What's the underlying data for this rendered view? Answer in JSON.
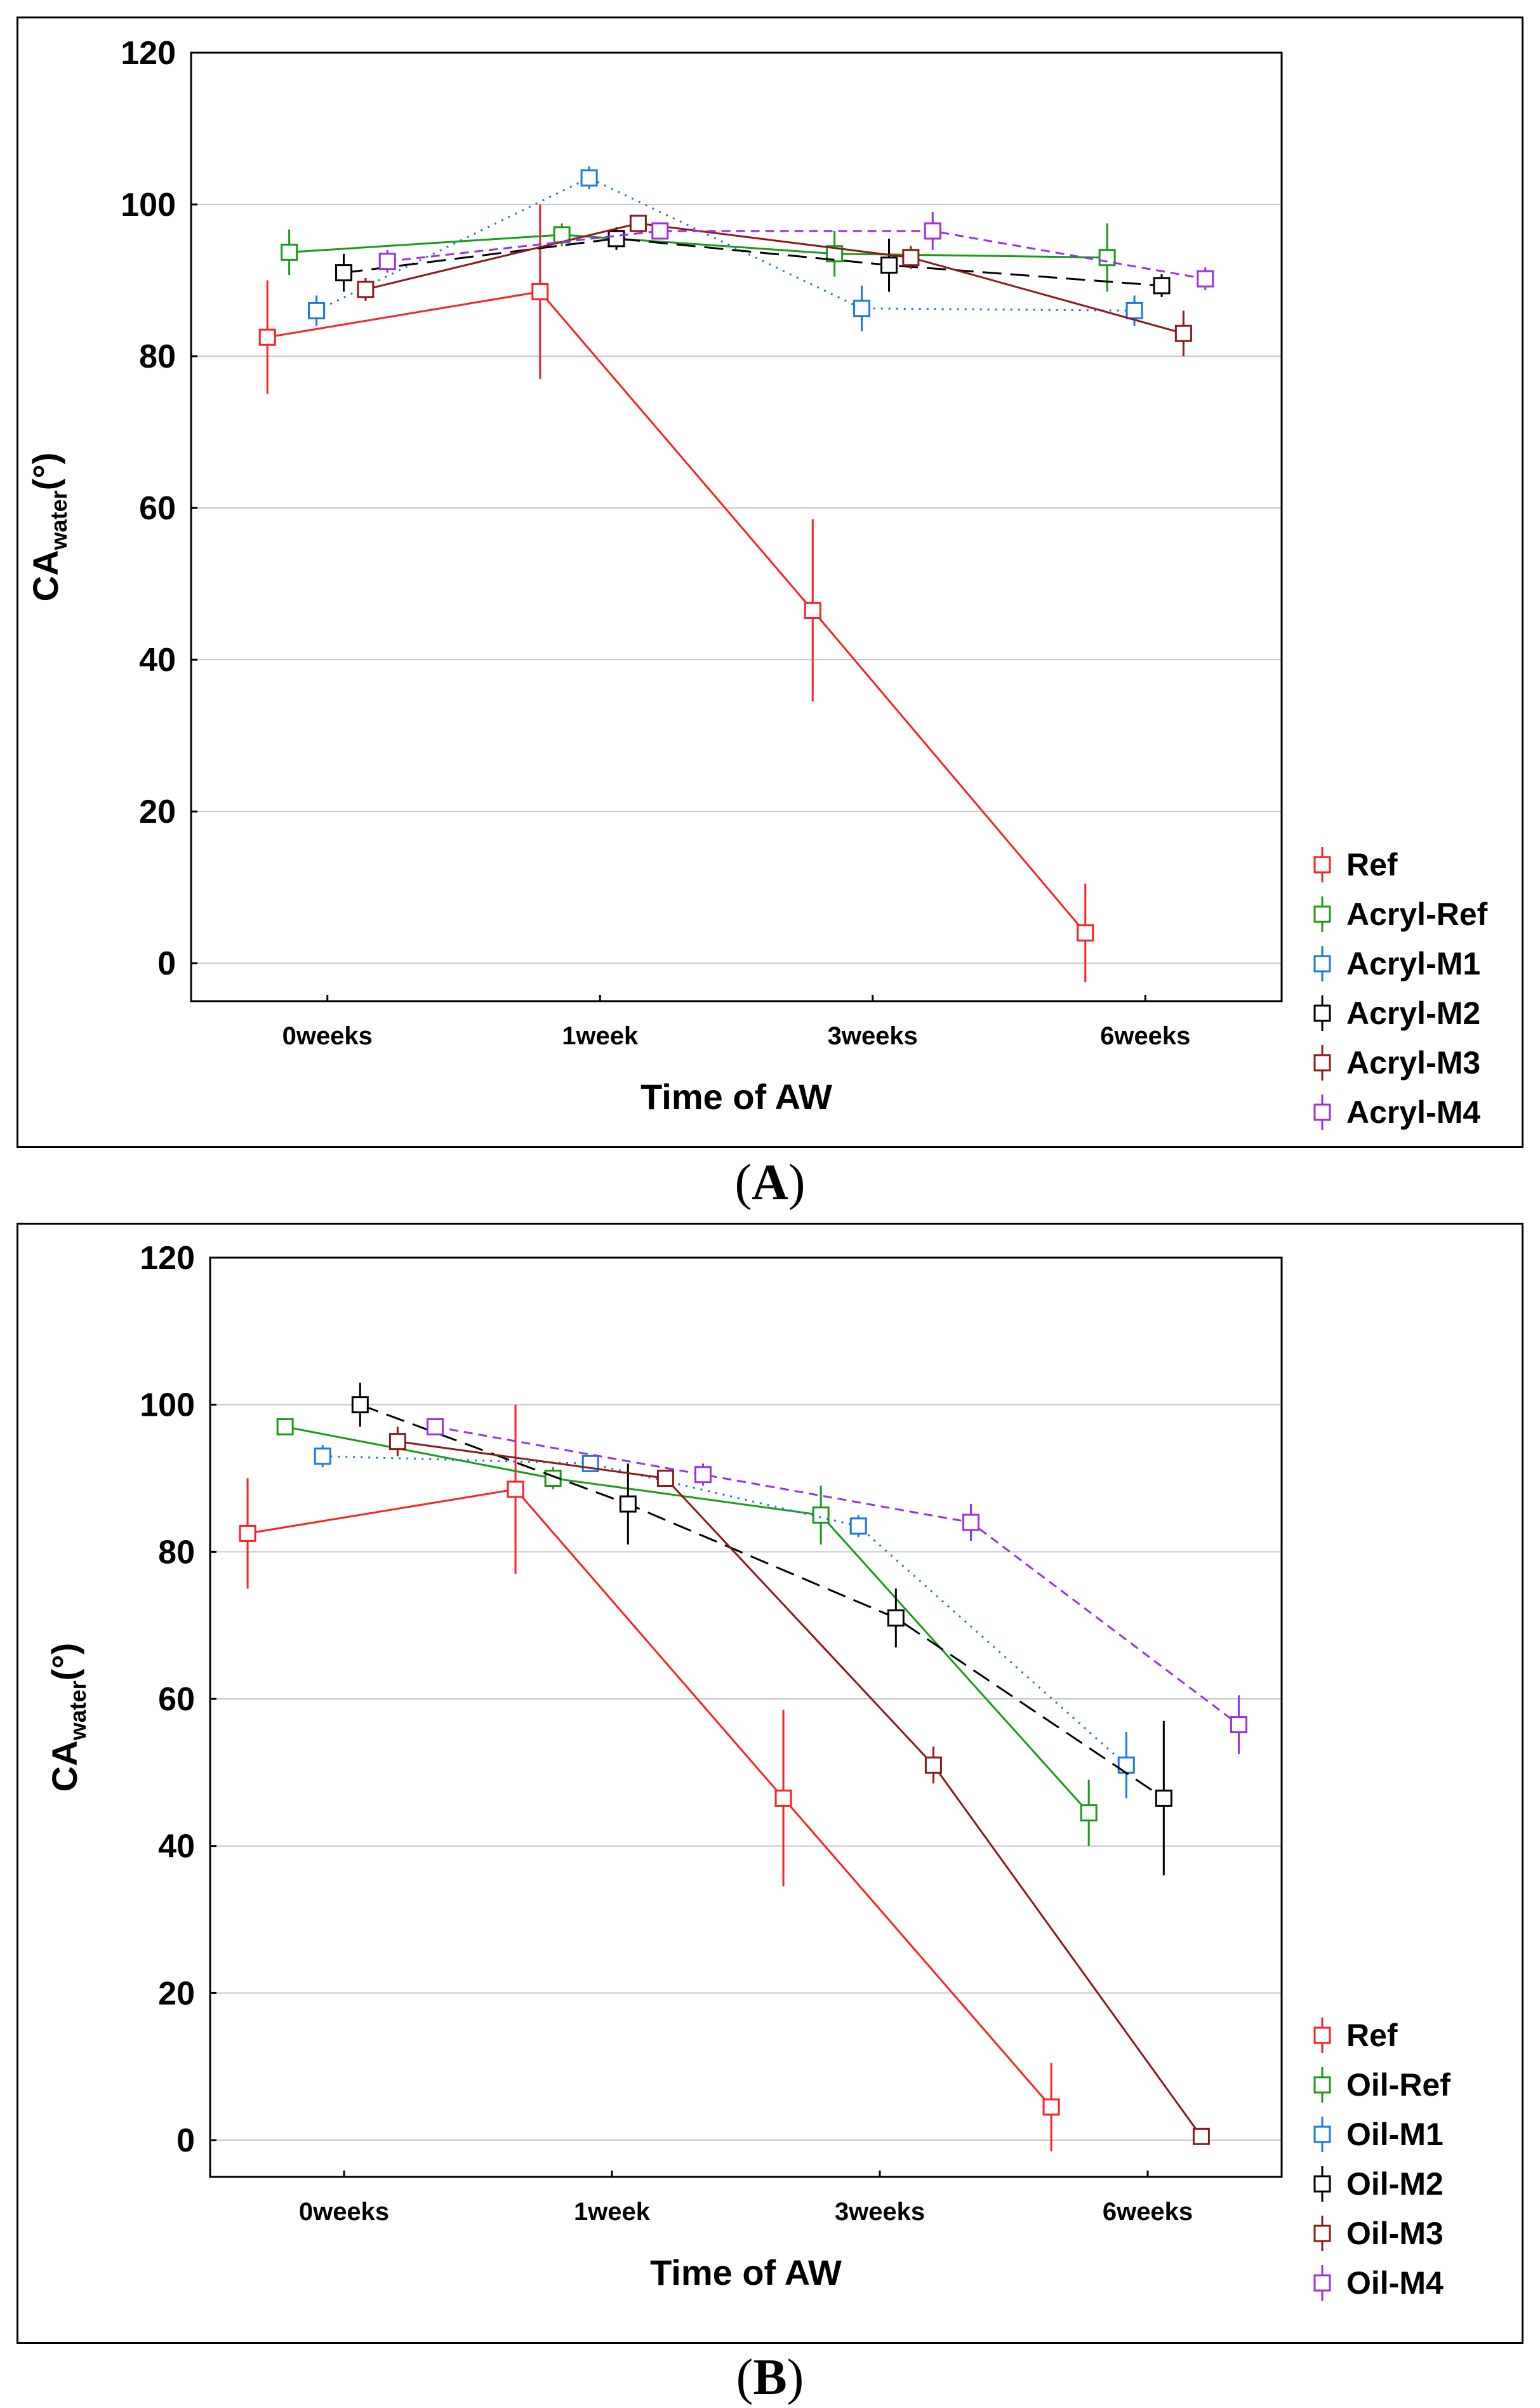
{
  "chart_data": [
    {
      "id": "A",
      "type": "line",
      "caption": "A",
      "xlabel": "Time of AW",
      "ylabel_main": "CA",
      "ylabel_sub": "water",
      "ylabel_suffix": "(°)",
      "categories": [
        "0weeks",
        "1week",
        "3weeks",
        "6weeks"
      ],
      "yticks": [
        "0",
        "20",
        "40",
        "60",
        "80",
        "100",
        "120"
      ],
      "ylim": [
        -5,
        120
      ],
      "legend_position": "bottom-right",
      "series": [
        {
          "name": "Ref",
          "color": "#ff2020",
          "dash": "solid",
          "values": [
            82.5,
            88.5,
            46.5,
            4.0
          ],
          "err": [
            7.5,
            11.5,
            12.0,
            6.5
          ],
          "offset": -0.22
        },
        {
          "name": "Acryl-Ref",
          "color": "#1a9a1a",
          "dash": "solid",
          "values": [
            93.7,
            96.0,
            93.5,
            93.0
          ],
          "err": [
            3.0,
            1.5,
            3.0,
            4.5
          ],
          "offset": -0.14
        },
        {
          "name": "Acryl-M1",
          "color": "#1a78e0",
          "dash": "dotted",
          "values": [
            86.0,
            103.5,
            86.3,
            86.0
          ],
          "err": [
            2.0,
            1.5,
            3.0,
            2.0
          ],
          "offset": -0.04
        },
        {
          "name": "Acryl-M2",
          "color": "#000000",
          "dash": "longdash",
          "values": [
            91.0,
            95.5,
            92.0,
            89.3
          ],
          "err": [
            2.5,
            1.5,
            3.5,
            1.5
          ],
          "offset": 0.06
        },
        {
          "name": "Acryl-M3",
          "color": "#8b1a1a",
          "dash": "solid",
          "values": [
            88.8,
            97.5,
            93.0,
            83.0
          ],
          "err": [
            1.5,
            1.0,
            1.5,
            3.0
          ],
          "offset": 0.14
        },
        {
          "name": "Acryl-M4",
          "color": "#9a30e8",
          "dash": "dashed",
          "values": [
            92.5,
            96.5,
            96.5,
            90.2
          ],
          "err": [
            1.5,
            1.0,
            2.5,
            1.5
          ],
          "offset": 0.22
        }
      ]
    },
    {
      "id": "B",
      "type": "line",
      "caption": "B",
      "xlabel": "Time of AW",
      "ylabel_main": "CA",
      "ylabel_sub": "water",
      "ylabel_suffix": "(°)",
      "categories": [
        "0weeks",
        "1week",
        "3weeks",
        "6weeks"
      ],
      "yticks": [
        "0",
        "20",
        "40",
        "60",
        "80",
        "100",
        "120"
      ],
      "ylim": [
        -5,
        120
      ],
      "legend_position": "bottom-right",
      "series": [
        {
          "name": "Ref",
          "color": "#ff2020",
          "dash": "solid",
          "values": [
            82.5,
            88.5,
            46.5,
            4.5
          ],
          "err": [
            7.5,
            11.5,
            12.0,
            6.0
          ],
          "offset": -0.36
        },
        {
          "name": "Oil-Ref",
          "color": "#1a9a1a",
          "dash": "solid",
          "values": [
            97.0,
            90.0,
            85.0,
            44.5
          ],
          "err": [
            1.0,
            1.5,
            4.0,
            4.5
          ],
          "offset": -0.22
        },
        {
          "name": "Oil-M1",
          "color": "#1a78e0",
          "dash": "dotted",
          "values": [
            93.0,
            92.0,
            83.5,
            51.0
          ],
          "err": [
            1.5,
            1.0,
            1.5,
            4.5
          ],
          "offset": -0.08
        },
        {
          "name": "Oil-M2",
          "color": "#000000",
          "dash": "longdash",
          "values": [
            100.0,
            86.5,
            71.0,
            46.5
          ],
          "err": [
            3.0,
            5.5,
            4.0,
            10.5
          ],
          "offset": 0.06
        },
        {
          "name": "Oil-M3",
          "color": "#8b1a1a",
          "dash": "solid",
          "values": [
            95.0,
            90.0,
            51.0,
            0.5
          ],
          "err": [
            2.0,
            1.0,
            2.5,
            0.5
          ],
          "offset": 0.2
        },
        {
          "name": "Oil-M4",
          "color": "#9a30e8",
          "dash": "dashed",
          "values": [
            97.0,
            90.5,
            84.0,
            56.5
          ],
          "err": [
            1.0,
            1.5,
            2.5,
            4.0
          ],
          "offset": 0.34
        }
      ]
    }
  ]
}
